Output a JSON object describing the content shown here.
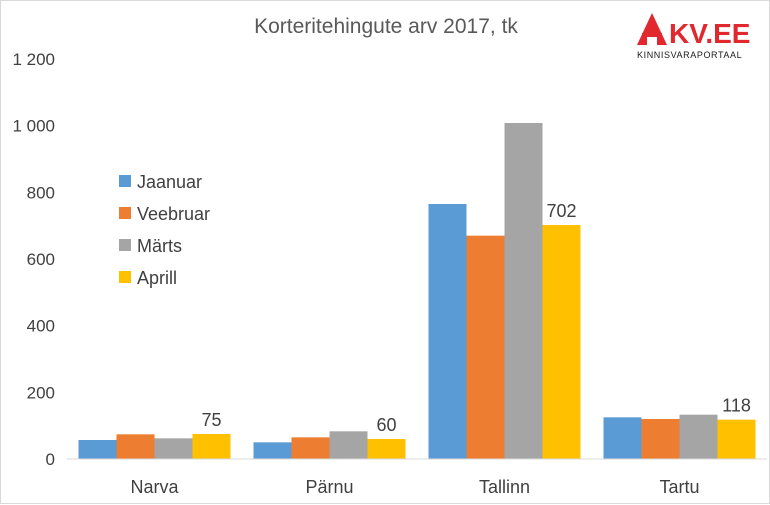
{
  "chart_data": {
    "type": "bar",
    "title": "Korteritehingute arv 2017, tk",
    "xlabel": "",
    "ylabel": "",
    "categories": [
      "Narva",
      "Pärnu",
      "Tallinn",
      "Tartu"
    ],
    "series": [
      {
        "name": "Jaanuar",
        "color": "#5b9bd5",
        "values": [
          57,
          50,
          765,
          125
        ]
      },
      {
        "name": "Veebruar",
        "color": "#ed7d31",
        "values": [
          74,
          65,
          670,
          120
        ]
      },
      {
        "name": "Märts",
        "color": "#a5a5a5",
        "values": [
          62,
          83,
          1008,
          133
        ]
      },
      {
        "name": "Aprill",
        "color": "#ffc000",
        "values": [
          75,
          60,
          702,
          118
        ]
      }
    ],
    "data_labels": [
      {
        "series": "Aprill",
        "category": "Narva",
        "text": "75"
      },
      {
        "series": "Aprill",
        "category": "Pärnu",
        "text": "60"
      },
      {
        "series": "Aprill",
        "category": "Tallinn",
        "text": "702"
      },
      {
        "series": "Aprill",
        "category": "Tartu",
        "text": "118"
      }
    ],
    "ylim": [
      0,
      1200
    ],
    "yticks": [
      0,
      200,
      400,
      600,
      800,
      1000,
      1200
    ],
    "ytick_labels": [
      "0",
      "200",
      "400",
      "600",
      "800",
      "1 000",
      "1 200"
    ],
    "grid": false,
    "legend_position": "left"
  },
  "logo": {
    "brand": "KV.EE",
    "tagline": "KINNISVARAPORTAAL",
    "color": "#e0282e"
  }
}
